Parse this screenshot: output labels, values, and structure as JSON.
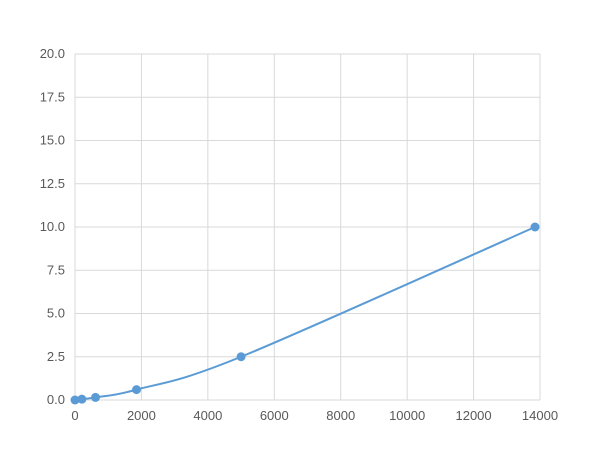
{
  "chart_data": {
    "type": "scatter",
    "title": "",
    "xlabel": "",
    "ylabel": "",
    "xlim": [
      0,
      14000
    ],
    "ylim": [
      0,
      20
    ],
    "xticks": [
      0,
      2000,
      4000,
      6000,
      8000,
      10000,
      12000,
      14000
    ],
    "yticks": [
      "0.0",
      "2.5",
      "5.0",
      "7.5",
      "10.0",
      "12.5",
      "15.0",
      "17.5",
      "20.0"
    ],
    "grid": true,
    "smooth_line": true,
    "color": "#5b9bd5",
    "series": [
      {
        "x": [
          0,
          206,
          617,
          1852,
          5000,
          13850
        ],
        "y": [
          0,
          0.05,
          0.15,
          0.6,
          2.5,
          10
        ]
      }
    ]
  }
}
